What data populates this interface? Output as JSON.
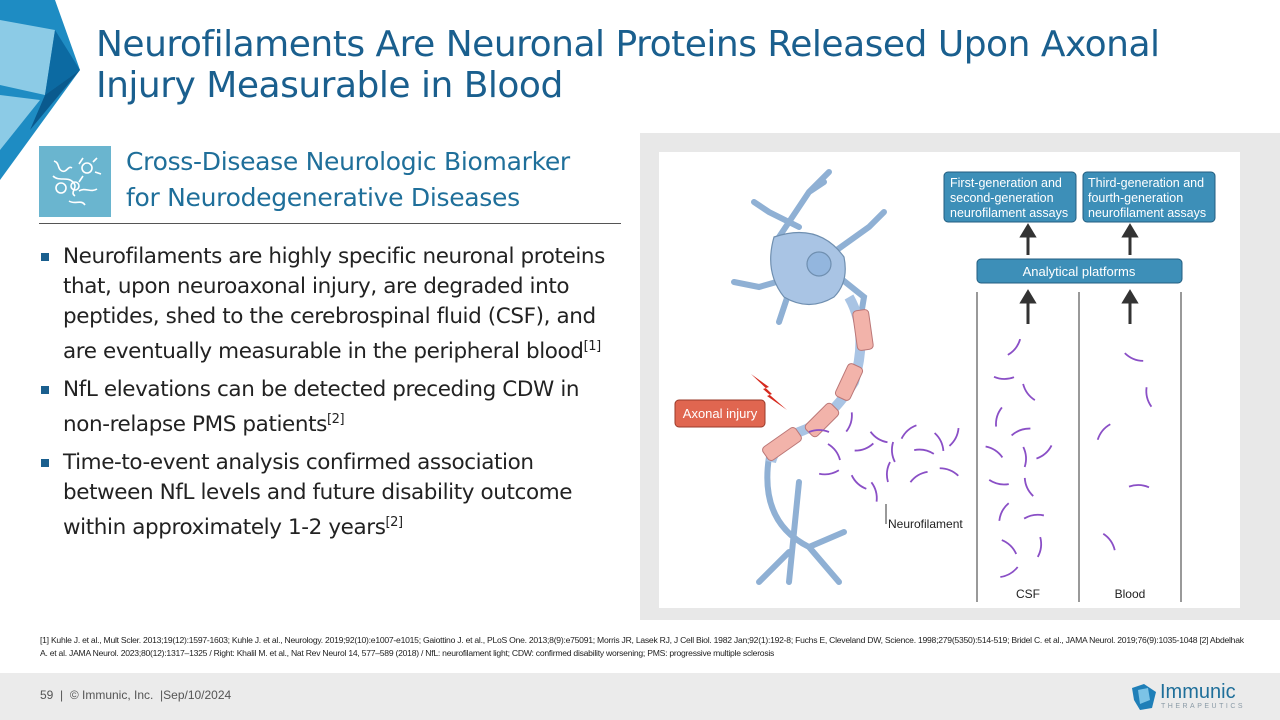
{
  "title": "Neurofilaments Are Neuronal Proteins Released Upon Axonal Injury Measurable in Blood",
  "subtitle": {
    "line1": "Cross-Disease Neurologic Biomarker",
    "line2": "for Neurodegenerative Diseases",
    "icon": "neurons-icon"
  },
  "bullets": [
    {
      "text": "Neurofilaments are highly specific neuronal proteins that, upon neuroaxonal injury, are degraded into peptides, shed to the cerebrospinal fluid (CSF), and are eventually measurable in the peripheral blood",
      "ref": "[1]"
    },
    {
      "text": "NfL elevations can be detected preceding CDW in non-relapse PMS patients",
      "ref": "[2]"
    },
    {
      "text": "Time-to-event analysis confirmed association between NfL levels and future disability outcome within approximately 1-2 years",
      "ref": "[2]"
    }
  ],
  "figure": {
    "box1": [
      "First-generation and",
      "second-generation",
      "neurofilament assays"
    ],
    "box2": [
      "Third-generation and",
      "fourth-generation",
      "neurofilament assays"
    ],
    "platforms": "Analytical platforms",
    "injury": "Axonal injury",
    "neurofilament": "Neurofilament",
    "csf": "CSF",
    "blood": "Blood",
    "colors": {
      "neuron": "#a9c4e4",
      "myelin": "#f2b3aa",
      "box": "#3d8fb8",
      "injury": "#e06650",
      "filament": "#8a4fc6"
    }
  },
  "references": "[1] Kuhle J. et al., Mult Scler. 2013;19(12):1597-1603; Kuhle J. et al., Neurology. 2019;92(10):e1007-e1015; Gaiottino J. et al., PLoS One. 2013;8(9):e75091; Morris JR, Lasek RJ, J Cell Biol. 1982 Jan;92(1):192-8; Fuchs E, Cleveland DW, Science. 1998;279(5350):514-519; Bridel C. et al., JAMA Neurol. 2019;76(9):1035-1048 [2] Abdelhak A. et al. JAMA Neurol. 2023;80(12):1317–1325 / Right: Khalil M. et al., Nat Rev Neurol 14, 577–589 (2018) / NfL: neurofilament light; CDW: confirmed disability worsening; PMS: progressive multiple sclerosis",
  "footer": {
    "page": "59",
    "copyright": "© Immunic, Inc.",
    "date": "Sep/10/2024"
  },
  "logo": {
    "name": "Immunic",
    "tagline": "THERAPEUTICS"
  },
  "colors": {
    "title": "#1a5f8e",
    "accent": "#6ab5cf"
  }
}
